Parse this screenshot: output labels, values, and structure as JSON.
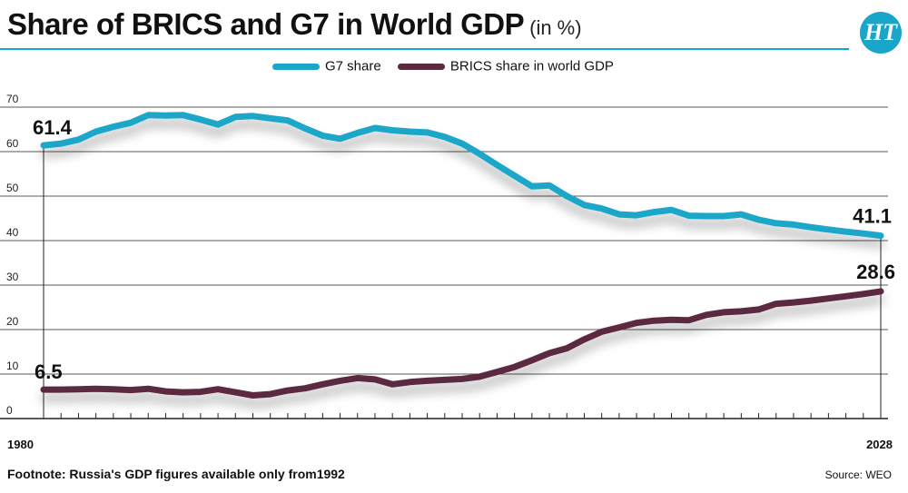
{
  "header": {
    "title": "Share of BRICS and G7 in World GDP",
    "unit": "(in %)",
    "logo_text": "HT"
  },
  "colors": {
    "g7": "#1aa6c8",
    "brics": "#5b2a3f",
    "grid": "#222222"
  },
  "footer": {
    "footnote": "Footnote: Russia's GDP figures available only from1992",
    "source": "Source: WEO"
  },
  "chart_data": {
    "type": "line",
    "x": [
      1980,
      1981,
      1982,
      1983,
      1984,
      1985,
      1986,
      1987,
      1988,
      1989,
      1990,
      1991,
      1992,
      1993,
      1994,
      1995,
      1996,
      1997,
      1998,
      1999,
      2000,
      2001,
      2002,
      2003,
      2004,
      2005,
      2006,
      2007,
      2008,
      2009,
      2010,
      2011,
      2012,
      2013,
      2014,
      2015,
      2016,
      2017,
      2018,
      2019,
      2020,
      2021,
      2022,
      2023,
      2024,
      2025,
      2026,
      2027,
      2028
    ],
    "series": [
      {
        "name": "G7 share",
        "values": [
          61.4,
          61.8,
          62.7,
          64.5,
          65.6,
          66.5,
          68.2,
          68.1,
          68.2,
          67.2,
          66.1,
          67.8,
          68.0,
          67.5,
          67.0,
          65.2,
          63.6,
          62.9,
          64.2,
          65.3,
          64.8,
          64.5,
          64.3,
          63.3,
          61.8,
          59.5,
          57.0,
          54.6,
          52.2,
          52.4,
          50.0,
          48.0,
          47.2,
          45.9,
          45.7,
          46.4,
          46.9,
          45.6,
          45.5,
          45.5,
          45.9,
          44.7,
          43.9,
          43.6,
          43.0,
          42.5,
          42.0,
          41.6,
          41.1
        ]
      },
      {
        "name": "BRICS share in world GDP",
        "values": [
          6.5,
          6.5,
          6.6,
          6.7,
          6.6,
          6.4,
          6.7,
          6.1,
          5.9,
          6.0,
          6.6,
          5.9,
          5.2,
          5.5,
          6.3,
          6.8,
          7.7,
          8.5,
          9.1,
          8.8,
          7.7,
          8.2,
          8.5,
          8.7,
          8.9,
          9.4,
          10.5,
          11.6,
          13.1,
          14.7,
          15.8,
          17.8,
          19.5,
          20.5,
          21.5,
          22.0,
          22.2,
          22.1,
          23.3,
          23.9,
          24.1,
          24.5,
          25.8,
          26.1,
          26.5,
          27.0,
          27.5,
          28.0,
          28.6
        ]
      }
    ],
    "y_ticks": [
      "0",
      "10",
      "20",
      "30",
      "40",
      "50",
      "60",
      "70"
    ],
    "x_tick_labels": [
      "1980",
      "2028"
    ],
    "ylim": [
      0,
      70
    ],
    "annotations": [
      "61.4",
      "41.1",
      "6.5",
      "28.6"
    ],
    "grid": true,
    "legend": "top-center"
  }
}
